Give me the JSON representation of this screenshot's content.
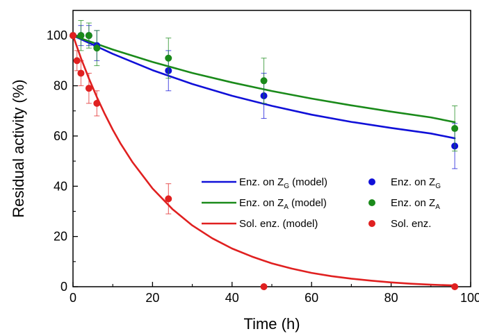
{
  "chart_data": {
    "type": "scatter",
    "xlabel": "Time (h)",
    "ylabel": "Residual activity (%)",
    "xlim": [
      0,
      100
    ],
    "ylim": [
      0,
      110
    ],
    "x_ticks": [
      0,
      20,
      40,
      60,
      80,
      100
    ],
    "y_ticks": [
      0,
      20,
      40,
      60,
      80,
      100
    ],
    "x_tick_labels": [
      "0",
      "20",
      "40",
      "60",
      "80",
      "100"
    ],
    "y_tick_labels": [
      "0",
      "20",
      "40",
      "60",
      "80",
      "100"
    ],
    "grid": false,
    "legend_position": "center-right",
    "colors": {
      "blue": "#1010d8",
      "green": "#1a8a1a",
      "red": "#e02020"
    },
    "series": [
      {
        "name": "Enz. on ZG (model)",
        "legend": {
          "base": "Enz. on Z",
          "sub": "G",
          "suffix": " (model)"
        },
        "kind": "line",
        "color": "#1010d8",
        "x": [
          0,
          10,
          20,
          30,
          40,
          50,
          60,
          70,
          80,
          90,
          96
        ],
        "y": [
          100,
          92.7,
          86.2,
          80.7,
          76.0,
          72.0,
          68.5,
          65.6,
          63.2,
          61.0,
          59.1
        ]
      },
      {
        "name": "Enz. on ZA (model)",
        "legend": {
          "base": "Enz. on Z",
          "sub": "A",
          "suffix": " (model)"
        },
        "kind": "line",
        "color": "#1a8a1a",
        "x": [
          0,
          10,
          20,
          30,
          40,
          50,
          60,
          70,
          80,
          90,
          96
        ],
        "y": [
          100,
          94.4,
          89.5,
          85.1,
          81.3,
          77.9,
          74.9,
          72.2,
          69.7,
          67.4,
          65.5
        ]
      },
      {
        "name": "Sol. enz. (model)",
        "legend": {
          "base": "Sol. enz.",
          "sub": "",
          "suffix": " (model)"
        },
        "kind": "line",
        "color": "#e02020",
        "x": [
          0,
          2,
          4,
          6,
          8,
          10,
          12,
          15,
          20,
          25,
          30,
          35,
          40,
          45,
          50,
          55,
          60,
          65,
          70,
          75,
          80,
          85,
          90,
          96
        ],
        "y": [
          100,
          91.0,
          82.9,
          75.5,
          68.7,
          62.5,
          56.9,
          49.5,
          39.1,
          30.9,
          24.4,
          19.3,
          15.2,
          12.0,
          9.3,
          7.2,
          5.5,
          4.2,
          3.2,
          2.4,
          1.7,
          1.2,
          0.8,
          0.5
        ]
      },
      {
        "name": "Enz. on ZG",
        "legend": {
          "base": "Enz. on Z",
          "sub": "G",
          "suffix": ""
        },
        "kind": "points",
        "color": "#1010d8",
        "x": [
          0,
          2,
          4,
          6,
          24,
          48,
          96
        ],
        "y": [
          100,
          100,
          100,
          96,
          86,
          76,
          56
        ],
        "err": [
          0,
          4,
          4,
          6,
          8,
          9,
          9
        ]
      },
      {
        "name": "Enz. on ZA",
        "legend": {
          "base": "Enz. on Z",
          "sub": "A",
          "suffix": ""
        },
        "kind": "points",
        "color": "#1a8a1a",
        "x": [
          0,
          2,
          4,
          6,
          24,
          48,
          96
        ],
        "y": [
          100,
          100,
          100,
          95,
          91,
          82,
          63
        ],
        "err": [
          0,
          6,
          5,
          7,
          8,
          9,
          9
        ]
      },
      {
        "name": "Sol. enz.",
        "legend": {
          "base": "Sol. enz.",
          "sub": "",
          "suffix": ""
        },
        "kind": "points",
        "color": "#e02020",
        "x": [
          0,
          1,
          2,
          4,
          6,
          24,
          48,
          96
        ],
        "y": [
          100,
          90,
          85,
          79,
          73,
          35,
          0,
          0
        ],
        "err": [
          0,
          4,
          5,
          6,
          5,
          6,
          0,
          0
        ]
      }
    ]
  }
}
